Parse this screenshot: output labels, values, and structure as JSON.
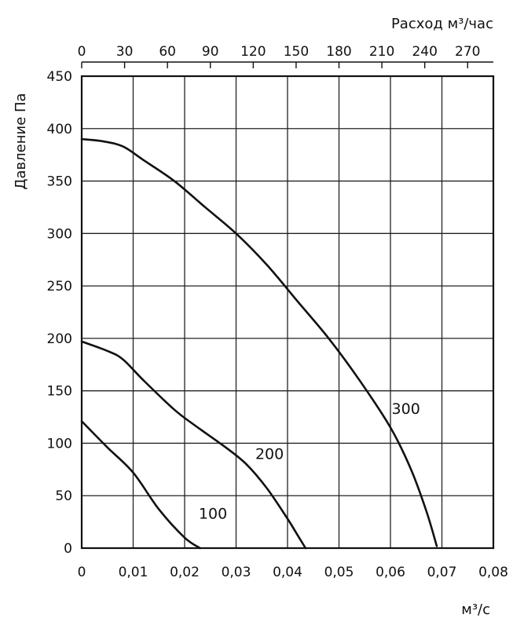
{
  "chart_data": {
    "type": "line",
    "ylabel": "Давление Па",
    "xlabel": "м³/с",
    "x2label": "Расход м³/час",
    "xlim": [
      0,
      0.08
    ],
    "ylim": [
      0,
      450
    ],
    "x2lim": [
      0,
      288
    ],
    "grid": true,
    "xticks": [
      "0",
      "0,01",
      "0,02",
      "0,03",
      "0,04",
      "0,05",
      "0,06",
      "0,07",
      "0,08"
    ],
    "yticks": [
      "0",
      "50",
      "100",
      "150",
      "200",
      "250",
      "300",
      "350",
      "400",
      "450"
    ],
    "x2ticks": [
      "0",
      "30",
      "60",
      "90",
      "120",
      "150",
      "180",
      "210",
      "240",
      "270"
    ],
    "series": [
      {
        "name": "100",
        "x": [
          0,
          0.005,
          0.01,
          0.015,
          0.02,
          0.023
        ],
        "y": [
          121,
          96,
          72,
          37,
          10,
          0
        ]
      },
      {
        "name": "200",
        "x": [
          0,
          0.005,
          0.008,
          0.012,
          0.018,
          0.022,
          0.028,
          0.032,
          0.036,
          0.04,
          0.042,
          0.0435
        ],
        "y": [
          197,
          188,
          180,
          160,
          132,
          117,
          96,
          80,
          57,
          28,
          12,
          0
        ]
      },
      {
        "name": "300",
        "x": [
          0,
          0.004,
          0.008,
          0.012,
          0.018,
          0.024,
          0.03,
          0.036,
          0.042,
          0.048,
          0.054,
          0.06,
          0.064,
          0.067,
          0.069
        ],
        "y": [
          390,
          388,
          383,
          370,
          350,
          325,
          300,
          270,
          235,
          200,
          160,
          115,
          75,
          35,
          2
        ]
      }
    ]
  }
}
